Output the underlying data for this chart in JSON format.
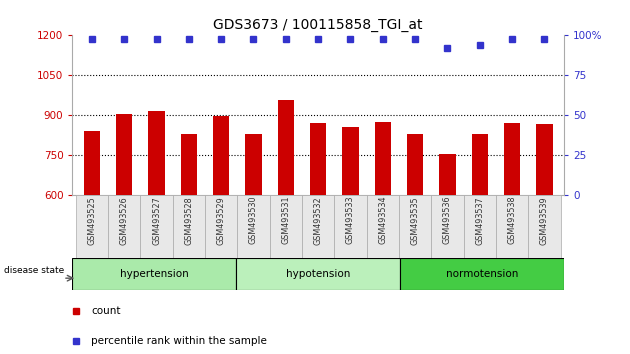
{
  "title": "GDS3673 / 100115858_TGI_at",
  "samples": [
    "GSM493525",
    "GSM493526",
    "GSM493527",
    "GSM493528",
    "GSM493529",
    "GSM493530",
    "GSM493531",
    "GSM493532",
    "GSM493533",
    "GSM493534",
    "GSM493535",
    "GSM493536",
    "GSM493537",
    "GSM493538",
    "GSM493539"
  ],
  "counts": [
    840,
    905,
    915,
    830,
    895,
    830,
    955,
    870,
    855,
    875,
    830,
    755,
    830,
    870,
    865
  ],
  "percentiles": [
    98,
    98,
    98,
    98,
    98,
    98,
    98,
    98,
    98,
    98,
    98,
    92,
    94,
    98,
    98
  ],
  "ylim_left": [
    600,
    1200
  ],
  "ylim_right": [
    0,
    100
  ],
  "yticks_left": [
    600,
    750,
    900,
    1050,
    1200
  ],
  "yticks_right": [
    0,
    25,
    50,
    75,
    100
  ],
  "bar_color": "#cc0000",
  "percentile_color": "#3333cc",
  "bg_color": "#ffffff",
  "group_definitions": [
    {
      "start": 0,
      "end": 5,
      "label": "hypertension",
      "color": "#aaeaaa"
    },
    {
      "start": 5,
      "end": 10,
      "label": "hypotension",
      "color": "#bbf0bb"
    },
    {
      "start": 10,
      "end": 15,
      "label": "normotension",
      "color": "#44cc44"
    }
  ],
  "xlabel_color": "#cc0000",
  "ylabel_right_color": "#3333cc",
  "dotted_lines": [
    750,
    900,
    1050
  ]
}
